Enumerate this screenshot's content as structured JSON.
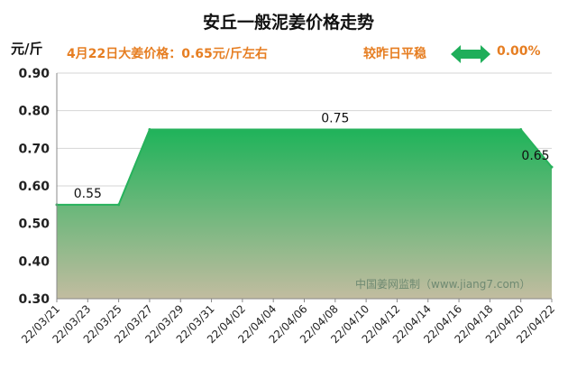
{
  "header": {
    "title": "安丘一般泥姜价格走势",
    "unit": "元/斤",
    "price_note": "4月22日大姜价格：0.65元/斤左右",
    "compare_label": "较昨日平稳",
    "compare_value": "0.00%",
    "arrow_icon": "double-arrow-icon",
    "accent_color": "#e67e22",
    "arrow_color": "#1fae5a"
  },
  "watermark": "中国姜网监制（www.jiang7.com）",
  "chart_data": {
    "type": "area",
    "title": "安丘一般泥姜价格走势",
    "ylabel": "元/斤",
    "ylim": [
      0.3,
      0.9
    ],
    "yticks": [
      "0.90",
      "0.80",
      "0.70",
      "0.60",
      "0.50",
      "0.40",
      "0.30"
    ],
    "grid": true,
    "x_ticks": [
      "22/03/21",
      "22/03/23",
      "22/03/25",
      "22/03/27",
      "22/03/29",
      "22/03/31",
      "22/04/02",
      "22/04/04",
      "22/04/06",
      "22/04/08",
      "22/04/10",
      "22/04/12",
      "22/04/14",
      "22/04/16",
      "22/04/18",
      "22/04/20",
      "22/04/22"
    ],
    "x": [
      "22/03/21",
      "22/03/25",
      "22/03/27",
      "22/04/20",
      "22/04/22"
    ],
    "y": [
      0.55,
      0.55,
      0.75,
      0.75,
      0.65
    ],
    "fill_color_top": "#1fb35a",
    "fill_color_bottom": "#c2bca0",
    "line_color": "#27b25c",
    "data_labels": [
      {
        "x": "22/03/23",
        "y": 0.55,
        "text": "0.55"
      },
      {
        "x": "22/04/08",
        "y": 0.75,
        "text": "0.75"
      },
      {
        "x": "22/04/22",
        "y": 0.65,
        "text": "0.65"
      }
    ]
  }
}
